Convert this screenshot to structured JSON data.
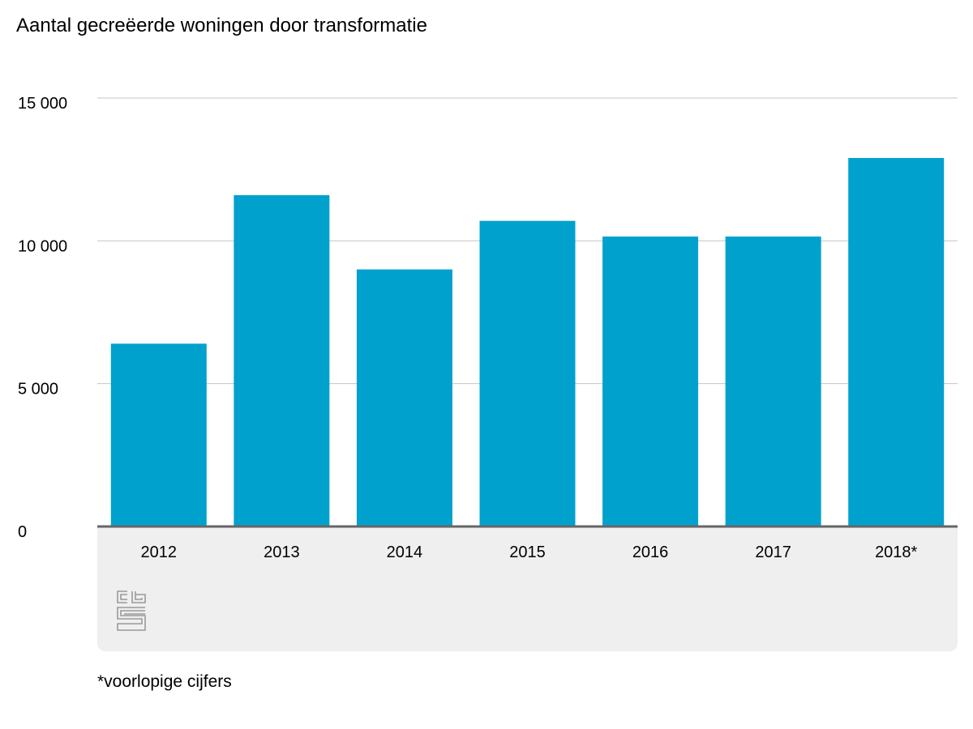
{
  "chart_data": {
    "type": "bar",
    "title": "Aantal gecreëerde woningen door transformatie",
    "categories": [
      "2012",
      "2013",
      "2014",
      "2015",
      "2016",
      "2017",
      "2018*"
    ],
    "values": [
      6400,
      11600,
      9000,
      10700,
      10150,
      10150,
      12900
    ],
    "xlabel": "",
    "ylabel": "",
    "ylim": [
      0,
      15000
    ],
    "yticks": [
      0,
      5000,
      10000,
      15000
    ],
    "ytick_labels": [
      "0",
      "5 000",
      "10 000",
      "15 000"
    ],
    "grid": true,
    "legend": "none",
    "bar_color": "#00a1cd",
    "gridline_color": "#c4c4c4",
    "baseline_color": "#666666"
  },
  "footnote": "*voorlopige cijfers",
  "logo": {
    "icon": "cbs-logo-icon",
    "text": "cbs",
    "color": "#9a9a9a"
  },
  "colors": {
    "background": "#ffffff",
    "footer_panel": "#efefef"
  }
}
